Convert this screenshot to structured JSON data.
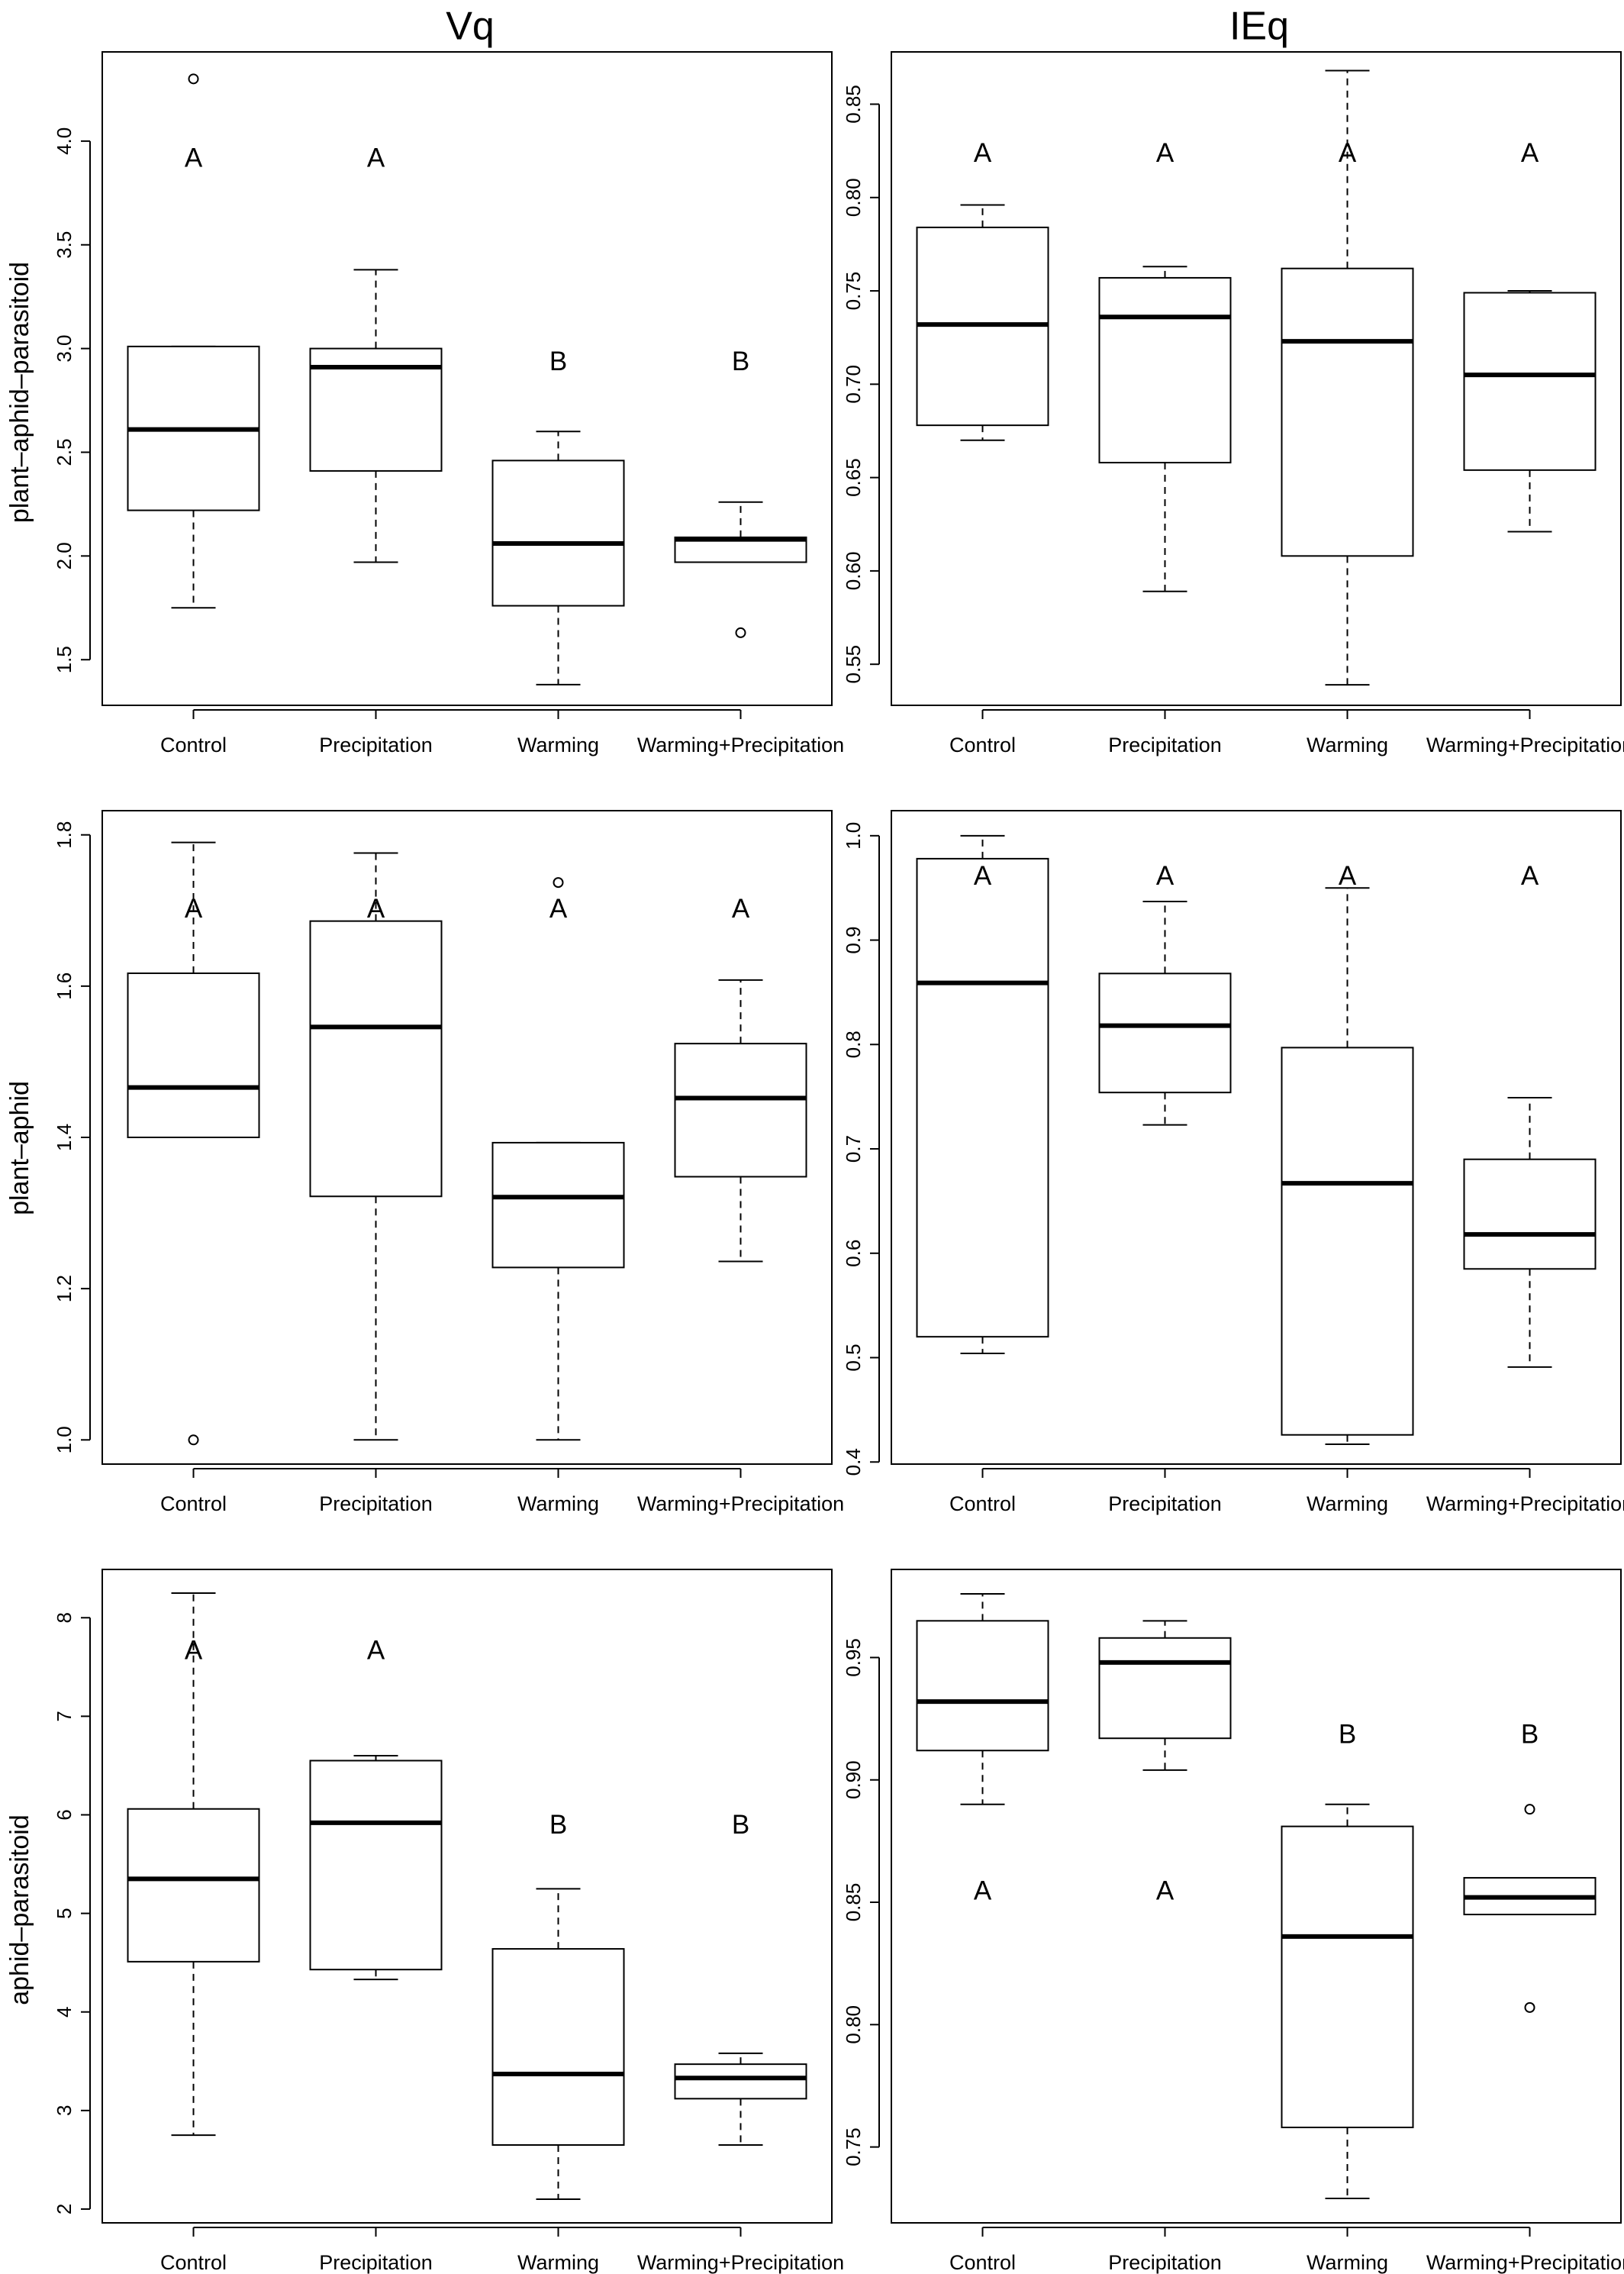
{
  "column_titles": [
    "Vq",
    "IEq"
  ],
  "row_labels": [
    "plant–aphid–parasitoid",
    "plant–aphid",
    "aphid–parasitoid"
  ],
  "chart_data": [
    {
      "type": "box",
      "row": 0,
      "col": 0,
      "categories": [
        "Control",
        "Precipitation",
        "Warming",
        "Warming+Precipitation"
      ],
      "ylim": [
        1.28,
        4.43
      ],
      "yticks": [
        1.5,
        2.0,
        2.5,
        3.0,
        3.5,
        4.0
      ],
      "ytick_labels": [
        "1.5",
        "2.0",
        "2.5",
        "3.0",
        "3.5",
        "4.0"
      ],
      "boxes": [
        {
          "whisker_low": 1.75,
          "q1": 2.22,
          "median": 2.61,
          "q3": 3.01,
          "whisker_high": 3.01,
          "outliers": [
            4.3
          ]
        },
        {
          "whisker_low": 1.97,
          "q1": 2.41,
          "median": 2.91,
          "q3": 3.0,
          "whisker_high": 3.38,
          "outliers": []
        },
        {
          "whisker_low": 1.38,
          "q1": 1.76,
          "median": 2.06,
          "q3": 2.46,
          "whisker_high": 2.6,
          "outliers": []
        },
        {
          "whisker_low": 1.97,
          "q1": 1.97,
          "median": 2.08,
          "q3": 2.09,
          "whisker_high": 2.26,
          "outliers": [
            1.63
          ]
        }
      ],
      "letters": [
        {
          "text": "A",
          "value": 3.91
        },
        {
          "text": "A",
          "value": 3.91
        },
        {
          "text": "B",
          "value": 2.93
        },
        {
          "text": "B",
          "value": 2.93
        }
      ]
    },
    {
      "type": "box",
      "row": 0,
      "col": 1,
      "categories": [
        "Control",
        "Precipitation",
        "Warming",
        "Warming+Precipitation"
      ],
      "ylim": [
        0.528,
        0.878
      ],
      "yticks": [
        0.55,
        0.6,
        0.65,
        0.7,
        0.75,
        0.8,
        0.85
      ],
      "ytick_labels": [
        "0.55",
        "0.60",
        "0.65",
        "0.70",
        "0.75",
        "0.80",
        "0.85"
      ],
      "boxes": [
        {
          "whisker_low": 0.67,
          "q1": 0.678,
          "median": 0.732,
          "q3": 0.784,
          "whisker_high": 0.796,
          "outliers": []
        },
        {
          "whisker_low": 0.589,
          "q1": 0.658,
          "median": 0.736,
          "q3": 0.757,
          "whisker_high": 0.763,
          "outliers": []
        },
        {
          "whisker_low": 0.539,
          "q1": 0.608,
          "median": 0.723,
          "q3": 0.762,
          "whisker_high": 0.868,
          "outliers": []
        },
        {
          "whisker_low": 0.621,
          "q1": 0.654,
          "median": 0.705,
          "q3": 0.749,
          "whisker_high": 0.75,
          "outliers": []
        }
      ],
      "letters": [
        {
          "text": "A",
          "value": 0.823
        },
        {
          "text": "A",
          "value": 0.823
        },
        {
          "text": "A",
          "value": 0.823
        },
        {
          "text": "A",
          "value": 0.823
        }
      ]
    },
    {
      "type": "box",
      "row": 1,
      "col": 0,
      "categories": [
        "Control",
        "Precipitation",
        "Warming",
        "Warming+Precipitation"
      ],
      "ylim": [
        0.968,
        1.832
      ],
      "yticks": [
        1.0,
        1.2,
        1.4,
        1.6,
        1.8
      ],
      "ytick_labels": [
        "1.0",
        "1.2",
        "1.4",
        "1.6",
        "1.8"
      ],
      "boxes": [
        {
          "whisker_low": 1.4,
          "q1": 1.4,
          "median": 1.466,
          "q3": 1.617,
          "whisker_high": 1.79,
          "outliers": [
            1.0
          ]
        },
        {
          "whisker_low": 1.0,
          "q1": 1.322,
          "median": 1.546,
          "q3": 1.686,
          "whisker_high": 1.776,
          "outliers": []
        },
        {
          "whisker_low": 1.0,
          "q1": 1.228,
          "median": 1.321,
          "q3": 1.393,
          "whisker_high": 1.393,
          "outliers": [
            1.737
          ]
        },
        {
          "whisker_low": 1.236,
          "q1": 1.348,
          "median": 1.452,
          "q3": 1.524,
          "whisker_high": 1.608,
          "outliers": []
        }
      ],
      "letters": [
        {
          "text": "A",
          "value": 1.7
        },
        {
          "text": "A",
          "value": 1.7
        },
        {
          "text": "A",
          "value": 1.7
        },
        {
          "text": "A",
          "value": 1.7
        }
      ]
    },
    {
      "type": "box",
      "row": 1,
      "col": 1,
      "categories": [
        "Control",
        "Precipitation",
        "Warming",
        "Warming+Precipitation"
      ],
      "ylim": [
        0.398,
        1.024
      ],
      "yticks": [
        0.4,
        0.5,
        0.6,
        0.7,
        0.8,
        0.9,
        1.0
      ],
      "ytick_labels": [
        "0.4",
        "0.5",
        "0.6",
        "0.7",
        "0.8",
        "0.9",
        "1.0"
      ],
      "boxes": [
        {
          "whisker_low": 0.504,
          "q1": 0.52,
          "median": 0.859,
          "q3": 0.978,
          "whisker_high": 1.0,
          "outliers": []
        },
        {
          "whisker_low": 0.723,
          "q1": 0.754,
          "median": 0.818,
          "q3": 0.868,
          "whisker_high": 0.937,
          "outliers": []
        },
        {
          "whisker_low": 0.417,
          "q1": 0.426,
          "median": 0.667,
          "q3": 0.797,
          "whisker_high": 0.95,
          "outliers": []
        },
        {
          "whisker_low": 0.491,
          "q1": 0.585,
          "median": 0.618,
          "q3": 0.69,
          "whisker_high": 0.749,
          "outliers": []
        }
      ],
      "letters": [
        {
          "text": "A",
          "value": 0.96
        },
        {
          "text": "A",
          "value": 0.96
        },
        {
          "text": "A",
          "value": 0.96
        },
        {
          "text": "A",
          "value": 0.96
        }
      ]
    },
    {
      "type": "box",
      "row": 2,
      "col": 0,
      "categories": [
        "Control",
        "Precipitation",
        "Warming",
        "Warming+Precipitation"
      ],
      "ylim": [
        1.86,
        8.49
      ],
      "yticks": [
        2,
        3,
        4,
        5,
        6,
        7,
        8
      ],
      "ytick_labels": [
        "2",
        "3",
        "4",
        "5",
        "6",
        "7",
        "8"
      ],
      "boxes": [
        {
          "whisker_low": 2.75,
          "q1": 4.51,
          "median": 5.35,
          "q3": 6.06,
          "whisker_high": 8.25,
          "outliers": []
        },
        {
          "whisker_low": 4.33,
          "q1": 4.43,
          "median": 5.92,
          "q3": 6.55,
          "whisker_high": 6.6,
          "outliers": []
        },
        {
          "whisker_low": 2.1,
          "q1": 2.65,
          "median": 3.37,
          "q3": 4.64,
          "whisker_high": 5.25,
          "outliers": []
        },
        {
          "whisker_low": 2.65,
          "q1": 3.12,
          "median": 3.33,
          "q3": 3.47,
          "whisker_high": 3.58,
          "outliers": []
        }
      ],
      "letters": [
        {
          "text": "A",
          "value": 7.65
        },
        {
          "text": "A",
          "value": 7.65
        },
        {
          "text": "B",
          "value": 5.88
        },
        {
          "text": "B",
          "value": 5.88
        }
      ]
    },
    {
      "type": "box",
      "row": 2,
      "col": 1,
      "categories": [
        "Control",
        "Precipitation",
        "Warming",
        "Warming+Precipitation"
      ],
      "ylim": [
        0.719,
        0.986
      ],
      "yticks": [
        0.75,
        0.8,
        0.85,
        0.9,
        0.95
      ],
      "ytick_labels": [
        "0.75",
        "0.80",
        "0.85",
        "0.90",
        "0.95"
      ],
      "boxes": [
        {
          "whisker_low": 0.89,
          "q1": 0.912,
          "median": 0.932,
          "q3": 0.965,
          "whisker_high": 0.976,
          "outliers": []
        },
        {
          "whisker_low": 0.904,
          "q1": 0.917,
          "median": 0.948,
          "q3": 0.958,
          "whisker_high": 0.965,
          "outliers": []
        },
        {
          "whisker_low": 0.729,
          "q1": 0.758,
          "median": 0.836,
          "q3": 0.881,
          "whisker_high": 0.89,
          "outliers": []
        },
        {
          "whisker_low": 0.845,
          "q1": 0.845,
          "median": 0.852,
          "q3": 0.86,
          "whisker_high": 0.86,
          "outliers": [
            0.888,
            0.807
          ]
        }
      ],
      "letters": [
        {
          "text": "A",
          "value": 0.854
        },
        {
          "text": "A",
          "value": 0.854
        },
        {
          "text": "B",
          "value": 0.918
        },
        {
          "text": "B",
          "value": 0.918
        }
      ]
    }
  ]
}
